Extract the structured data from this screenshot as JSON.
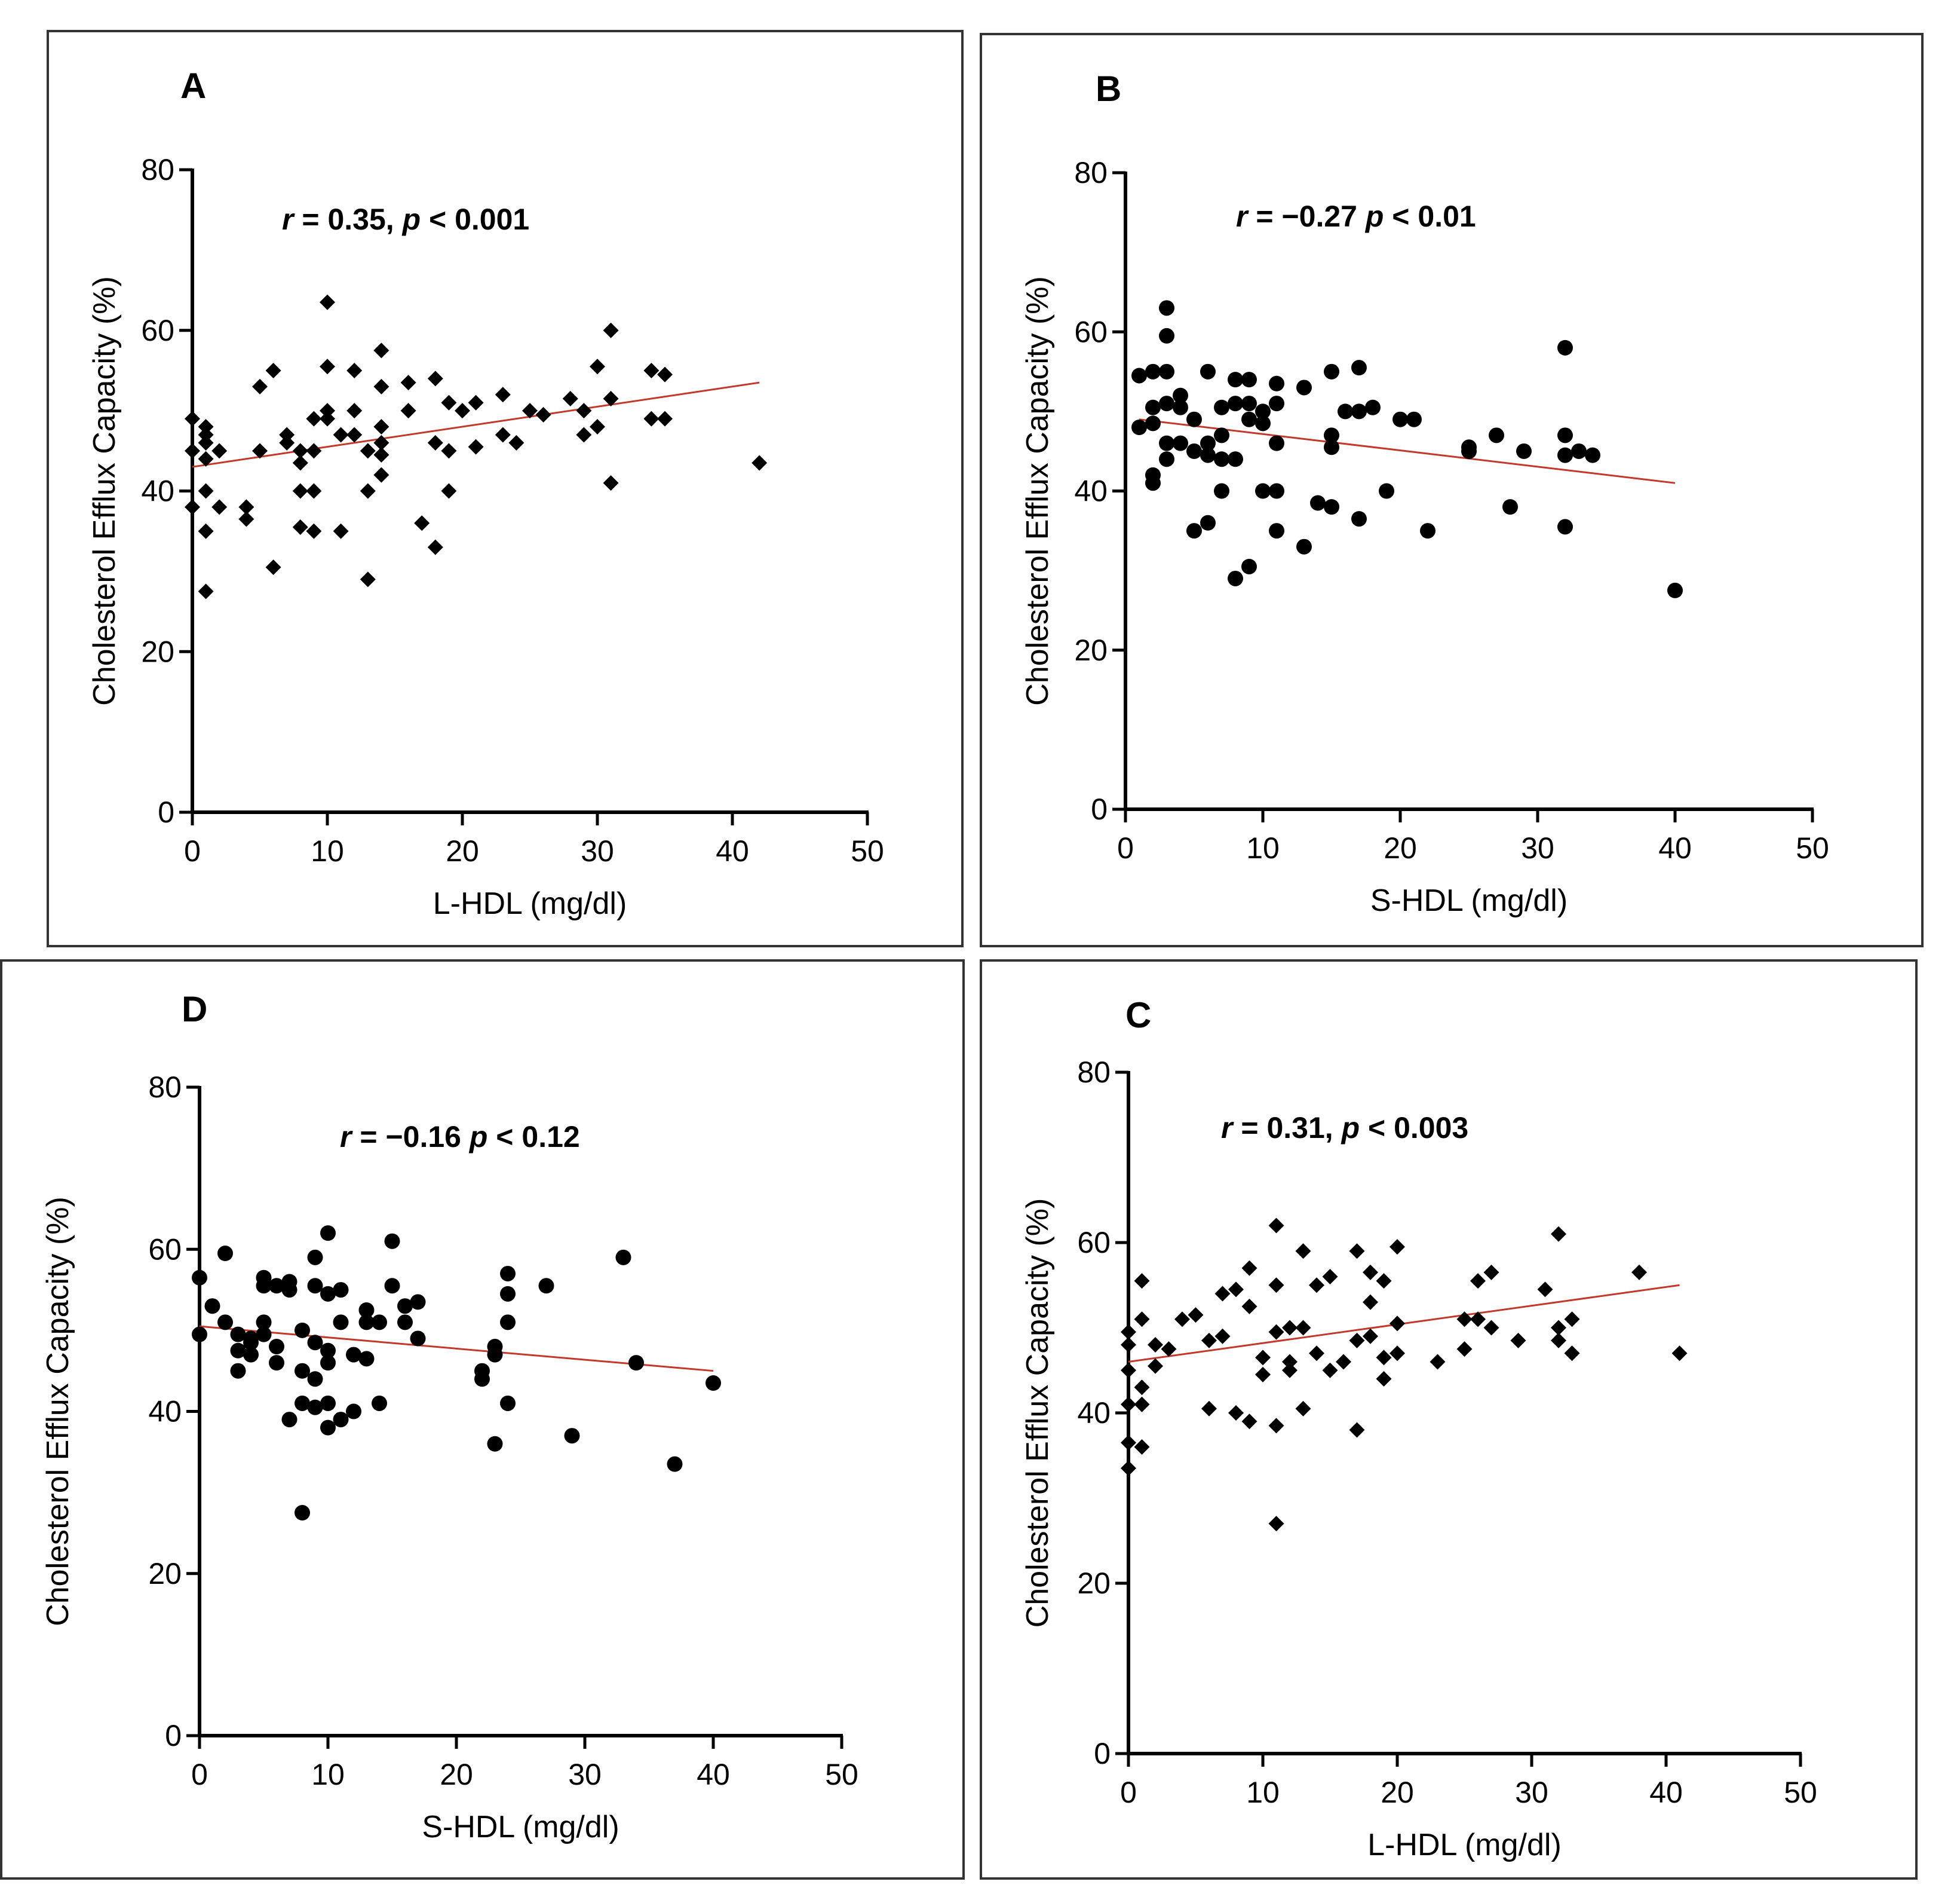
{
  "figure": {
    "chart_data": [
      {
        "id": "A",
        "type": "scatter",
        "panel_label": "A",
        "stat_r": "r",
        "stat_text": " = 0.35, ",
        "stat_p": "p",
        "stat_text2": " < 0.001",
        "xlabel": "L-HDL (mg/dl)",
        "ylabel": "Cholesterol Efflux Capacity (%)",
        "xlim": [
          0,
          50
        ],
        "ylim": [
          0,
          80
        ],
        "xticks": [
          "0",
          "10",
          "20",
          "30",
          "40",
          "50"
        ],
        "yticks": [
          "0",
          "20",
          "40",
          "60",
          "80"
        ],
        "marker": "diamond",
        "fit_line": [
          [
            0,
            43
          ],
          [
            42,
            53.5
          ]
        ],
        "fit_color": "#c0392b",
        "points": [
          [
            0,
            49
          ],
          [
            0,
            45
          ],
          [
            0,
            38
          ],
          [
            1,
            48
          ],
          [
            1,
            47
          ],
          [
            1,
            46
          ],
          [
            1,
            44
          ],
          [
            1,
            40
          ],
          [
            1,
            35
          ],
          [
            1,
            27.5
          ],
          [
            2,
            45
          ],
          [
            2,
            38
          ],
          [
            4,
            38
          ],
          [
            4,
            36.5
          ],
          [
            5,
            53
          ],
          [
            5,
            45
          ],
          [
            6,
            55
          ],
          [
            6,
            30.5
          ],
          [
            7,
            47
          ],
          [
            7,
            46
          ],
          [
            8,
            45
          ],
          [
            8,
            43.5
          ],
          [
            8,
            40
          ],
          [
            8,
            35.5
          ],
          [
            9,
            49
          ],
          [
            9,
            45
          ],
          [
            9,
            40
          ],
          [
            9,
            35
          ],
          [
            10,
            63.5
          ],
          [
            10,
            55.5
          ],
          [
            10,
            50
          ],
          [
            10,
            49
          ],
          [
            11,
            47
          ],
          [
            11,
            35
          ],
          [
            12,
            55
          ],
          [
            12,
            50
          ],
          [
            12,
            47
          ],
          [
            13,
            45
          ],
          [
            13,
            40
          ],
          [
            13,
            29
          ],
          [
            14,
            57.5
          ],
          [
            14,
            53
          ],
          [
            14,
            48
          ],
          [
            14,
            46
          ],
          [
            14,
            44.5
          ],
          [
            14,
            42
          ],
          [
            16,
            53.5
          ],
          [
            16,
            50
          ],
          [
            17,
            36
          ],
          [
            18,
            54
          ],
          [
            18,
            46
          ],
          [
            18,
            33
          ],
          [
            19,
            45
          ],
          [
            19,
            40
          ],
          [
            19,
            51
          ],
          [
            20,
            50
          ],
          [
            21,
            51
          ],
          [
            21,
            45.5
          ],
          [
            23,
            52
          ],
          [
            23,
            47
          ],
          [
            24,
            46
          ],
          [
            25,
            50
          ],
          [
            26,
            49.5
          ],
          [
            28,
            51.5
          ],
          [
            29,
            50
          ],
          [
            29,
            47
          ],
          [
            30,
            55.5
          ],
          [
            30,
            48
          ],
          [
            31,
            60
          ],
          [
            31,
            51.5
          ],
          [
            31,
            41
          ],
          [
            34,
            55
          ],
          [
            34,
            49
          ],
          [
            35,
            54.5
          ],
          [
            35,
            49
          ],
          [
            42,
            43.5
          ]
        ]
      },
      {
        "id": "B",
        "type": "scatter",
        "panel_label": "B",
        "stat_r": "r",
        "stat_text": " = −0.27   ",
        "stat_p": "p",
        "stat_text2": " < 0.01",
        "xlabel": "S-HDL (mg/dl)",
        "ylabel": "Cholesterol Efflux Capacity (%)",
        "xlim": [
          0,
          50
        ],
        "ylim": [
          0,
          80
        ],
        "xticks": [
          "0",
          "10",
          "20",
          "30",
          "40",
          "50"
        ],
        "yticks": [
          "0",
          "20",
          "40",
          "60",
          "80"
        ],
        "marker": "circle",
        "fit_line": [
          [
            1,
            49
          ],
          [
            40,
            41
          ]
        ],
        "fit_color": "#c0392b",
        "points": [
          [
            1,
            54.5
          ],
          [
            1,
            48
          ],
          [
            2,
            55
          ],
          [
            2,
            50.5
          ],
          [
            2,
            48.5
          ],
          [
            2,
            42
          ],
          [
            2,
            41
          ],
          [
            3,
            63
          ],
          [
            3,
            59.5
          ],
          [
            3,
            55
          ],
          [
            3,
            51
          ],
          [
            3,
            46
          ],
          [
            3,
            44
          ],
          [
            4,
            52
          ],
          [
            4,
            50.5
          ],
          [
            4,
            46
          ],
          [
            5,
            49
          ],
          [
            5,
            45
          ],
          [
            5,
            35
          ],
          [
            6,
            55
          ],
          [
            6,
            46
          ],
          [
            6,
            44.5
          ],
          [
            6,
            36
          ],
          [
            7,
            50.5
          ],
          [
            7,
            47
          ],
          [
            7,
            44
          ],
          [
            7,
            40
          ],
          [
            8,
            54
          ],
          [
            8,
            51
          ],
          [
            8,
            44
          ],
          [
            8,
            29
          ],
          [
            9,
            54
          ],
          [
            9,
            51
          ],
          [
            9,
            49
          ],
          [
            9,
            30.5
          ],
          [
            10,
            50
          ],
          [
            10,
            48.5
          ],
          [
            10,
            40
          ],
          [
            11,
            53.5
          ],
          [
            11,
            51
          ],
          [
            11,
            46
          ],
          [
            11,
            40
          ],
          [
            11,
            35
          ],
          [
            13,
            53
          ],
          [
            13,
            33
          ],
          [
            14,
            38.5
          ],
          [
            15,
            55
          ],
          [
            15,
            47
          ],
          [
            15,
            45.5
          ],
          [
            15,
            38
          ],
          [
            16,
            50
          ],
          [
            17,
            55.5
          ],
          [
            17,
            50
          ],
          [
            17,
            36.5
          ],
          [
            18,
            50.5
          ],
          [
            19,
            40
          ],
          [
            20,
            49
          ],
          [
            21,
            49
          ],
          [
            22,
            35
          ],
          [
            25,
            45.5
          ],
          [
            25,
            45
          ],
          [
            27,
            47
          ],
          [
            28,
            38
          ],
          [
            29,
            45
          ],
          [
            32,
            58
          ],
          [
            32,
            47
          ],
          [
            32,
            44.5
          ],
          [
            32,
            35.5
          ],
          [
            33,
            45
          ],
          [
            34,
            44.5
          ],
          [
            40,
            27.5
          ]
        ]
      },
      {
        "id": "D",
        "type": "scatter",
        "panel_label": "D",
        "stat_r": "r",
        "stat_text": " = −0.16  ",
        "stat_p": "p",
        "stat_text2": " < 0.12",
        "xlabel": "S-HDL (mg/dl)",
        "ylabel": "Cholesterol Efflux Capacity (%)",
        "xlim": [
          0,
          50
        ],
        "ylim": [
          0,
          80
        ],
        "xticks": [
          "0",
          "10",
          "20",
          "30",
          "40",
          "50"
        ],
        "yticks": [
          "0",
          "20",
          "40",
          "60",
          "80"
        ],
        "marker": "circle",
        "fit_line": [
          [
            0,
            50.5
          ],
          [
            40,
            45
          ]
        ],
        "fit_color": "#c0392b",
        "points": [
          [
            0,
            56.5
          ],
          [
            0,
            49.5
          ],
          [
            1,
            53
          ],
          [
            2,
            59.5
          ],
          [
            2,
            51
          ],
          [
            3,
            49.5
          ],
          [
            3,
            47.5
          ],
          [
            3,
            45
          ],
          [
            4,
            49
          ],
          [
            4,
            47
          ],
          [
            4,
            48.5
          ],
          [
            5,
            56.5
          ],
          [
            5,
            55.5
          ],
          [
            5,
            51
          ],
          [
            5,
            49.5
          ],
          [
            6,
            55.5
          ],
          [
            6,
            48
          ],
          [
            6,
            46
          ],
          [
            7,
            56
          ],
          [
            7,
            55
          ],
          [
            7,
            39
          ],
          [
            8,
            50
          ],
          [
            8,
            45
          ],
          [
            8,
            41
          ],
          [
            8,
            27.5
          ],
          [
            9,
            59
          ],
          [
            9,
            55.5
          ],
          [
            9,
            48.5
          ],
          [
            9,
            44
          ],
          [
            9,
            40.5
          ],
          [
            10,
            62
          ],
          [
            10,
            54.5
          ],
          [
            10,
            47.5
          ],
          [
            10,
            46
          ],
          [
            10,
            41
          ],
          [
            10,
            38
          ],
          [
            11,
            55
          ],
          [
            11,
            51
          ],
          [
            11,
            39
          ],
          [
            12,
            47
          ],
          [
            12,
            40
          ],
          [
            13,
            52.5
          ],
          [
            13,
            51
          ],
          [
            13,
            46.5
          ],
          [
            14,
            51
          ],
          [
            14,
            41
          ],
          [
            15,
            61
          ],
          [
            15,
            55.5
          ],
          [
            16,
            53
          ],
          [
            16,
            51
          ],
          [
            17,
            53.5
          ],
          [
            17,
            49
          ],
          [
            22,
            45
          ],
          [
            22,
            44
          ],
          [
            23,
            48
          ],
          [
            23,
            47
          ],
          [
            23,
            36
          ],
          [
            24,
            57
          ],
          [
            24,
            54.5
          ],
          [
            24,
            51
          ],
          [
            24,
            41
          ],
          [
            27,
            55.5
          ],
          [
            29,
            37
          ],
          [
            33,
            59
          ],
          [
            34,
            46
          ],
          [
            37,
            33.5
          ],
          [
            40,
            43.5
          ]
        ]
      },
      {
        "id": "C",
        "type": "scatter",
        "panel_label": "C",
        "stat_r": "r",
        "stat_text": " = 0.31, ",
        "stat_p": "p",
        "stat_text2": " < 0.003",
        "xlabel": "L-HDL (mg/dl)",
        "ylabel": "Cholesterol Efflux Capacity (%)",
        "xlim": [
          0,
          50
        ],
        "ylim": [
          0,
          80
        ],
        "xticks": [
          "0",
          "10",
          "20",
          "30",
          "40",
          "50"
        ],
        "yticks": [
          "0",
          "20",
          "40",
          "60",
          "80"
        ],
        "marker": "diamond",
        "fit_line": [
          [
            0,
            46
          ],
          [
            41,
            55
          ]
        ],
        "fit_color": "#c0392b",
        "points": [
          [
            0,
            49.5
          ],
          [
            0,
            48
          ],
          [
            0,
            45
          ],
          [
            0,
            41
          ],
          [
            0,
            36.5
          ],
          [
            0,
            33.5
          ],
          [
            1,
            55.5
          ],
          [
            1,
            51
          ],
          [
            1,
            43
          ],
          [
            1,
            41
          ],
          [
            1,
            36
          ],
          [
            2,
            48
          ],
          [
            2,
            45.5
          ],
          [
            3,
            47.5
          ],
          [
            4,
            51
          ],
          [
            5,
            51.5
          ],
          [
            6,
            48.5
          ],
          [
            6,
            40.5
          ],
          [
            7,
            54
          ],
          [
            7,
            49
          ],
          [
            8,
            54.5
          ],
          [
            8,
            40
          ],
          [
            9,
            57
          ],
          [
            9,
            52.5
          ],
          [
            9,
            39
          ],
          [
            10,
            46.5
          ],
          [
            10,
            44.5
          ],
          [
            11,
            62
          ],
          [
            11,
            55
          ],
          [
            11,
            49.5
          ],
          [
            11,
            38.5
          ],
          [
            11,
            27
          ],
          [
            12,
            50
          ],
          [
            12,
            46
          ],
          [
            12,
            45
          ],
          [
            13,
            59
          ],
          [
            13,
            50
          ],
          [
            13,
            40.5
          ],
          [
            14,
            55
          ],
          [
            14,
            47
          ],
          [
            15,
            56
          ],
          [
            15,
            45
          ],
          [
            16,
            46
          ],
          [
            17,
            59
          ],
          [
            17,
            48.5
          ],
          [
            17,
            38
          ],
          [
            18,
            56.5
          ],
          [
            18,
            53
          ],
          [
            18,
            49
          ],
          [
            19,
            55.5
          ],
          [
            19,
            46.5
          ],
          [
            19,
            44
          ],
          [
            20,
            59.5
          ],
          [
            20,
            50.5
          ],
          [
            20,
            47
          ],
          [
            23,
            46
          ],
          [
            25,
            51
          ],
          [
            25,
            47.5
          ],
          [
            26,
            55.5
          ],
          [
            26,
            51
          ],
          [
            27,
            56.5
          ],
          [
            27,
            50
          ],
          [
            29,
            48.5
          ],
          [
            31,
            54.5
          ],
          [
            32,
            61
          ],
          [
            32,
            50
          ],
          [
            32,
            48.5
          ],
          [
            33,
            51
          ],
          [
            33,
            47
          ],
          [
            38,
            56.5
          ],
          [
            41,
            47
          ]
        ]
      }
    ]
  }
}
